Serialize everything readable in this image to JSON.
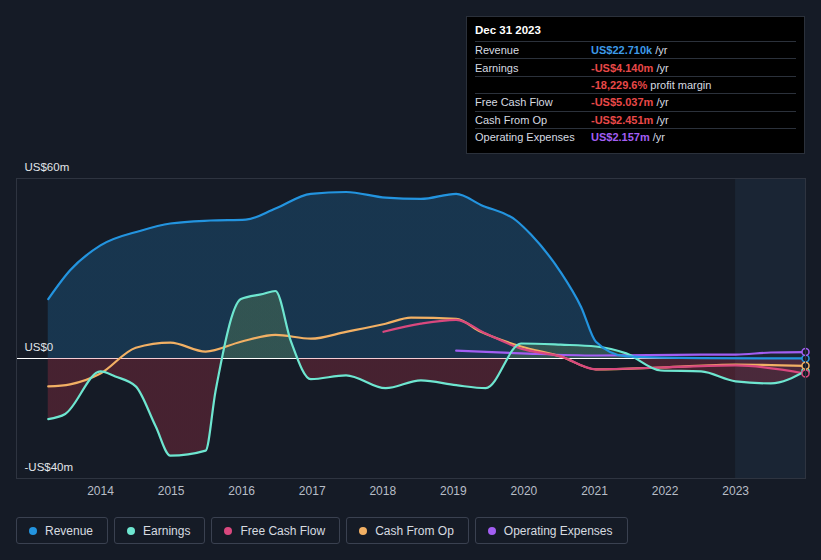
{
  "chart_data": {
    "type": "line",
    "grid": true,
    "legend": "bottom",
    "xlim": [
      2012.81,
      2023.99
    ],
    "xticks": [
      2014,
      2015,
      2016,
      2017,
      2018,
      2019,
      2020,
      2021,
      2022,
      2023
    ],
    "ylim": [
      -40,
      60
    ],
    "yticks": [
      {
        "value": -40,
        "label": "-US$40m"
      },
      {
        "value": 0,
        "label": "US$0"
      },
      {
        "value": 60,
        "label": "US$60m"
      }
    ],
    "shaded_region": {
      "x": [
        2023,
        2023.99
      ]
    },
    "series": [
      {
        "name": "Revenue",
        "color": "#2394df",
        "type": "area",
        "x": [
          2013.26,
          2013.57,
          2014.0,
          2014.57,
          2014.99,
          2015.56,
          2016.06,
          2016.48,
          2016.98,
          2017.48,
          2018.04,
          2018.54,
          2019.04,
          2019.39,
          2019.89,
          2020.1,
          2020.52,
          2020.81,
          2021.02,
          2021.45,
          2022.51,
          2023.99
        ],
        "values": [
          19.8,
          29.4,
          37.7,
          42.6,
          45,
          46,
          46.3,
          50,
          54.9,
          55.5,
          53.6,
          53.2,
          54.9,
          51.2,
          46,
          41.3,
          28.8,
          17.2,
          5.6,
          0.7,
          0.1,
          0.0227
        ]
      },
      {
        "name": "Earnings",
        "color": "#6ee6d0",
        "type": "area",
        "x": [
          2013.26,
          2013.5,
          2014.0,
          2014.21,
          2014.5,
          2014.78,
          2014.99,
          2015.49,
          2015.63,
          2015.99,
          2016.3,
          2016.48,
          2016.7,
          2016.98,
          2017.48,
          2018.04,
          2018.54,
          2019.04,
          2019.46,
          2019.96,
          2020.52,
          2021.02,
          2021.45,
          2021.94,
          2022.51,
          2023.0,
          2023.5,
          2023.99
        ],
        "values": [
          -20.2,
          -18.5,
          -4.3,
          -6,
          -9.3,
          -22.5,
          -32.4,
          -30.7,
          -10.9,
          19.8,
          21.5,
          22.5,
          5.6,
          -6.9,
          -5.6,
          -9.9,
          -7.3,
          -8.9,
          -9.9,
          5,
          4.6,
          4,
          1.7,
          -4,
          -4.3,
          -7.6,
          -8.3,
          -4.14
        ]
      },
      {
        "name": "Free Cash Flow",
        "color": "#d9487e",
        "type": "line",
        "x": [
          2018.01,
          2018.54,
          2019.04,
          2019.46,
          2019.96,
          2020.52,
          2021.02,
          2021.94,
          2023.0,
          2023.99
        ],
        "values": [
          8.9,
          11.6,
          12.9,
          8.3,
          3.3,
          0.7,
          -3.6,
          -3,
          -2.3,
          -5.037
        ]
      },
      {
        "name": "Cash From Op",
        "color": "#f2b064",
        "type": "line",
        "x": [
          2013.26,
          2013.57,
          2014.0,
          2014.5,
          2014.99,
          2015.49,
          2015.99,
          2016.48,
          2016.98,
          2017.48,
          2018.04,
          2018.4,
          2019.04,
          2019.39,
          2019.96,
          2020.52,
          2021.02,
          2021.94,
          2023.0,
          2023.99
        ],
        "values": [
          -9.3,
          -8.6,
          -5,
          3.6,
          5.3,
          2.3,
          5.6,
          7.9,
          6.6,
          8.9,
          11.6,
          13.6,
          13.2,
          8.9,
          4,
          0.7,
          -3.6,
          -3,
          -2,
          -2.451
        ]
      },
      {
        "name": "Operating Expenses",
        "color": "#a25ef2",
        "type": "line",
        "x": [
          2019.04,
          2019.96,
          2021.02,
          2022.51,
          2023.0,
          2023.5,
          2023.99
        ],
        "values": [
          2.6,
          1.7,
          1,
          1.3,
          1.3,
          2,
          2.157
        ]
      }
    ],
    "tooltip": {
      "title": "Dec 31 2023",
      "rows": [
        {
          "label": "Revenue",
          "value": "US$22.710k",
          "unit": "/yr",
          "color": "#3d9ae8"
        },
        {
          "label": "Earnings",
          "value": "-US$4.140m",
          "unit": "/yr",
          "color": "#e84848"
        },
        {
          "value": "-18,229.6%",
          "unit": "profit margin",
          "color": "#e84848"
        },
        {
          "label": "Free Cash Flow",
          "value": "-US$5.037m",
          "unit": "/yr",
          "color": "#e84848"
        },
        {
          "label": "Cash From Op",
          "value": "-US$2.451m",
          "unit": "/yr",
          "color": "#e84848"
        },
        {
          "label": "Operating Expenses",
          "value": "US$2.157m",
          "unit": "/yr",
          "color": "#a25ef2"
        }
      ]
    }
  }
}
